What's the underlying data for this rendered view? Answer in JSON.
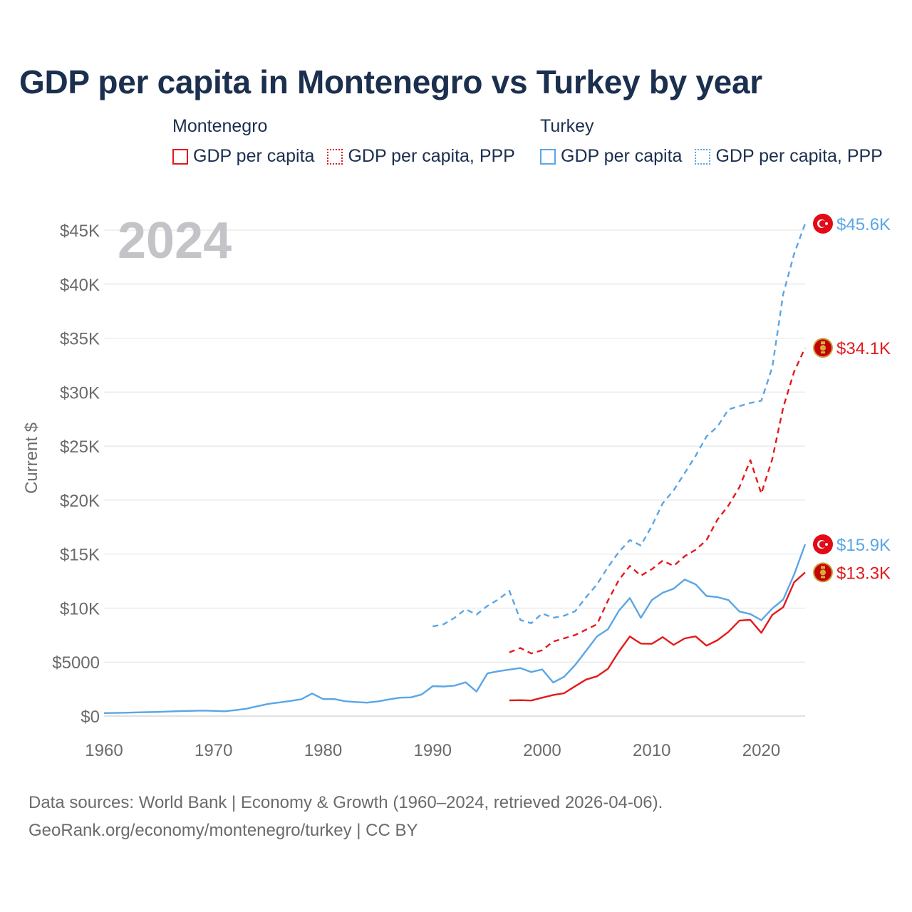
{
  "title": "GDP per capita in Montenegro vs Turkey by year",
  "legend": {
    "groups": [
      {
        "name": "Montenegro",
        "color": "#e31a1c",
        "items": [
          {
            "label": "GDP per capita",
            "style": "solid"
          },
          {
            "label": "GDP per capita, PPP",
            "style": "dotted"
          }
        ]
      },
      {
        "name": "Turkey",
        "color": "#5aa6e6",
        "items": [
          {
            "label": "GDP per capita",
            "style": "solid"
          },
          {
            "label": "GDP per capita, PPP",
            "style": "dotted"
          }
        ]
      }
    ]
  },
  "chart_data": {
    "type": "line",
    "year_label": "2024",
    "ylabel": "Current $",
    "xlim": [
      1960,
      2024
    ],
    "ylim": [
      0,
      45000
    ],
    "x_ticks": [
      1960,
      1970,
      1980,
      1990,
      2000,
      2010,
      2020
    ],
    "y_ticks": [
      {
        "value": 0,
        "label": "$0"
      },
      {
        "value": 5000,
        "label": "$5000"
      },
      {
        "value": 10000,
        "label": "$10K"
      },
      {
        "value": 15000,
        "label": "$15K"
      },
      {
        "value": 20000,
        "label": "$20K"
      },
      {
        "value": 25000,
        "label": "$25K"
      },
      {
        "value": 30000,
        "label": "$30K"
      },
      {
        "value": 35000,
        "label": "$35K"
      },
      {
        "value": 40000,
        "label": "$40K"
      },
      {
        "value": 45000,
        "label": "$45K"
      }
    ],
    "series": [
      {
        "name": "Turkey GDP per capita",
        "country": "Turkey",
        "metric": "GDP per capita",
        "color": "#5aa6e6",
        "dashed": false,
        "end_label": "$15.9K",
        "flag": "turkey-flag-icon",
        "start_year": 1960,
        "values": [
          280,
          290,
          310,
          340,
          360,
          380,
          420,
          460,
          480,
          510,
          480,
          440,
          550,
          680,
          910,
          1130,
          1260,
          1400,
          1560,
          2090,
          1570,
          1580,
          1370,
          1300,
          1240,
          1360,
          1540,
          1700,
          1730,
          2000,
          2770,
          2740,
          2820,
          3130,
          2270,
          3950,
          4150,
          4300,
          4450,
          4080,
          4320,
          3110,
          3640,
          4720,
          6040,
          7380,
          8040,
          9750,
          10930,
          9100,
          10740,
          11420,
          11800,
          12640,
          12200,
          11120,
          11010,
          10740,
          9680,
          9450,
          8880,
          9960,
          10800,
          13110,
          15900
        ]
      },
      {
        "name": "Turkey GDP per capita, PPP",
        "country": "Turkey",
        "metric": "GDP per capita, PPP",
        "color": "#5aa6e6",
        "dashed": true,
        "end_label": "$45.6K",
        "flag": "turkey-flag-icon",
        "start_year": 1990,
        "values": [
          8300,
          8500,
          9100,
          9900,
          9400,
          10200,
          10800,
          11600,
          8900,
          8600,
          9500,
          9100,
          9300,
          9700,
          11000,
          12200,
          13800,
          15200,
          16300,
          15800,
          17600,
          19700,
          20900,
          22500,
          24100,
          25900,
          26800,
          28400,
          28700,
          29000,
          29200,
          32300,
          39100,
          42800,
          45600
        ]
      },
      {
        "name": "Montenegro GDP per capita",
        "country": "Montenegro",
        "metric": "GDP per capita",
        "color": "#e31a1c",
        "dashed": false,
        "end_label": "$13.3K",
        "flag": "montenegro-flag-icon",
        "start_year": 1997,
        "values": [
          1450,
          1470,
          1440,
          1700,
          1950,
          2120,
          2760,
          3380,
          3680,
          4380,
          5970,
          7370,
          6710,
          6690,
          7310,
          6590,
          7190,
          7380,
          6520,
          7030,
          7800,
          8850,
          8910,
          7710,
          9370,
          10090,
          12390,
          13300
        ]
      },
      {
        "name": "Montenegro GDP per capita, PPP",
        "country": "Montenegro",
        "metric": "GDP per capita, PPP",
        "color": "#e31a1c",
        "dashed": true,
        "end_label": "$34.1K",
        "flag": "montenegro-flag-icon",
        "start_year": 1997,
        "values": [
          5900,
          6300,
          5800,
          6100,
          6900,
          7200,
          7500,
          8000,
          8500,
          10700,
          12600,
          13900,
          13000,
          13600,
          14400,
          13900,
          14800,
          15400,
          16300,
          18200,
          19500,
          21200,
          23700,
          20600,
          23800,
          28600,
          31900,
          34100
        ]
      }
    ]
  },
  "footer": {
    "line1": "Data sources: World Bank | Economy & Growth (1960–2024, retrieved 2026-04-06).",
    "line2": "GeoRank.org/economy/montenegro/turkey | CC BY"
  }
}
